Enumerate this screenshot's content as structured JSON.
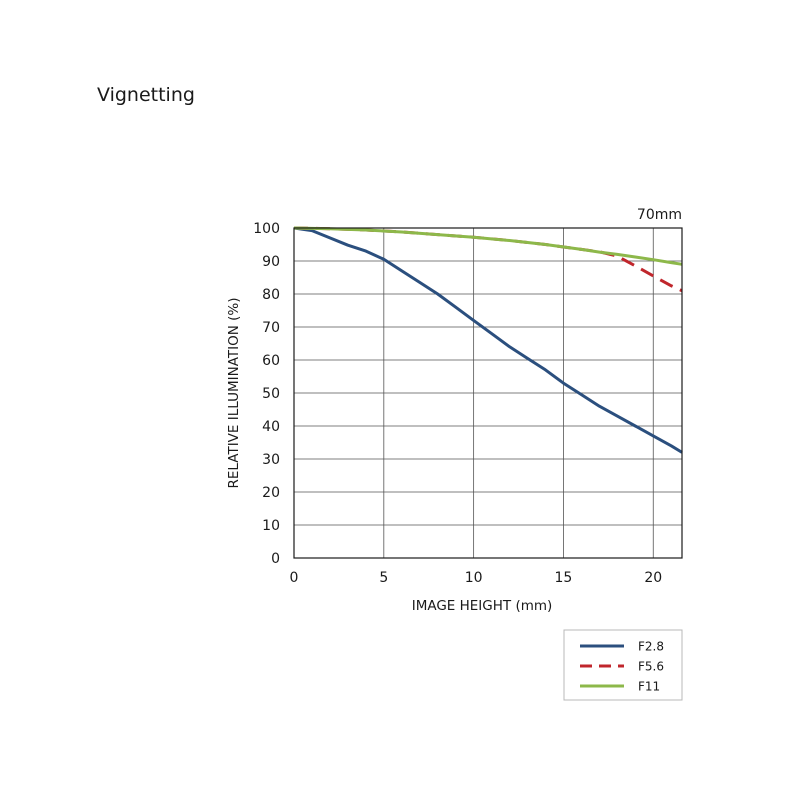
{
  "page": {
    "title": "Vignetting"
  },
  "chart_data": {
    "type": "line",
    "title": "Vignetting",
    "subtitle": "70mm",
    "xlabel": "IMAGE HEIGHT (mm)",
    "ylabel": "RELATIVE ILLUMINATION (%)",
    "xlim": [
      0,
      21.6
    ],
    "ylim": [
      0,
      100
    ],
    "xticks": [
      0,
      5,
      10,
      15,
      20
    ],
    "yticks": [
      0,
      10,
      20,
      30,
      40,
      50,
      60,
      70,
      80,
      90,
      100
    ],
    "grid": true,
    "legend_position": "below-right",
    "series": [
      {
        "name": "F2.8",
        "color": "#2b4f7e",
        "dash": "solid",
        "x": [
          0,
          1,
          2,
          3,
          4,
          5,
          6,
          7,
          8,
          9,
          10,
          11,
          12,
          13,
          14,
          15,
          16,
          17,
          18,
          19,
          20,
          21,
          21.6
        ],
        "y": [
          100,
          99.2,
          97,
          94.8,
          93,
          90.5,
          87,
          83.5,
          80,
          76,
          72,
          68,
          64,
          60.5,
          57,
          53,
          49.5,
          46,
          43,
          40,
          37,
          34,
          32
        ]
      },
      {
        "name": "F5.6",
        "color": "#c0262c",
        "dash": "dashed",
        "x": [
          0,
          2,
          4,
          6,
          8,
          10,
          12,
          14,
          16,
          17,
          18,
          19,
          20,
          21,
          21.6
        ],
        "y": [
          100,
          99.8,
          99.4,
          98.8,
          98,
          97.2,
          96.2,
          95,
          93.5,
          92.8,
          91.5,
          88.5,
          85.5,
          82.5,
          81
        ]
      },
      {
        "name": "F11",
        "color": "#8db84a",
        "dash": "solid",
        "x": [
          0,
          2,
          4,
          6,
          8,
          10,
          12,
          14,
          16,
          17,
          18,
          19,
          20,
          21,
          21.6
        ],
        "y": [
          100,
          99.8,
          99.4,
          98.8,
          98,
          97.2,
          96.2,
          95,
          93.5,
          92.7,
          92,
          91.2,
          90.4,
          89.5,
          89
        ]
      }
    ]
  }
}
